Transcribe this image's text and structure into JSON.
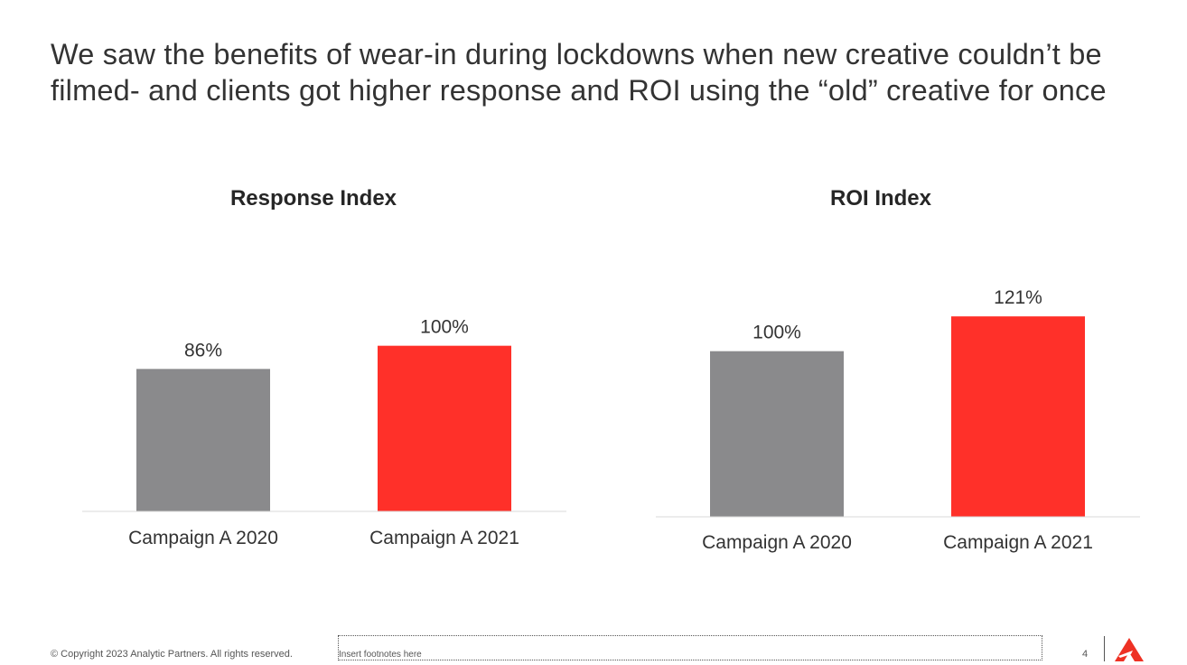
{
  "headline": "We saw the benefits of wear-in during lockdowns when new creative couldn’t be filmed- and clients got higher response and ROI using the “old” creative for once",
  "colors": {
    "gray_bar": "#8a8a8c",
    "red_bar": "#ff3029",
    "axis": "#d9d9d9",
    "logo": "#ee3124"
  },
  "chart_data": [
    {
      "type": "bar",
      "title": "Response Index",
      "categories": [
        "Campaign A 2020",
        "Campaign A 2021"
      ],
      "values": [
        86,
        100
      ],
      "data_labels": [
        "86%",
        "100%"
      ],
      "bar_colors": [
        "#8a8a8c",
        "#ff3029"
      ],
      "xlabel": "",
      "ylabel": "",
      "ylim": [
        0,
        120
      ],
      "grid": false,
      "legend": "none"
    },
    {
      "type": "bar",
      "title": "ROI Index",
      "categories": [
        "Campaign A 2020",
        "Campaign A 2021"
      ],
      "values": [
        100,
        121
      ],
      "data_labels": [
        "100%",
        "121%"
      ],
      "bar_colors": [
        "#8a8a8c",
        "#ff3029"
      ],
      "xlabel": "",
      "ylabel": "",
      "ylim": [
        0,
        144
      ],
      "grid": false,
      "legend": "none"
    }
  ],
  "footer": {
    "copyright": "© Copyright 2023 Analytic Partners. All rights reserved.",
    "footnote": "Insert footnotes here",
    "page_number": "4",
    "logo_icon": "analytic-partners-logo-icon"
  }
}
